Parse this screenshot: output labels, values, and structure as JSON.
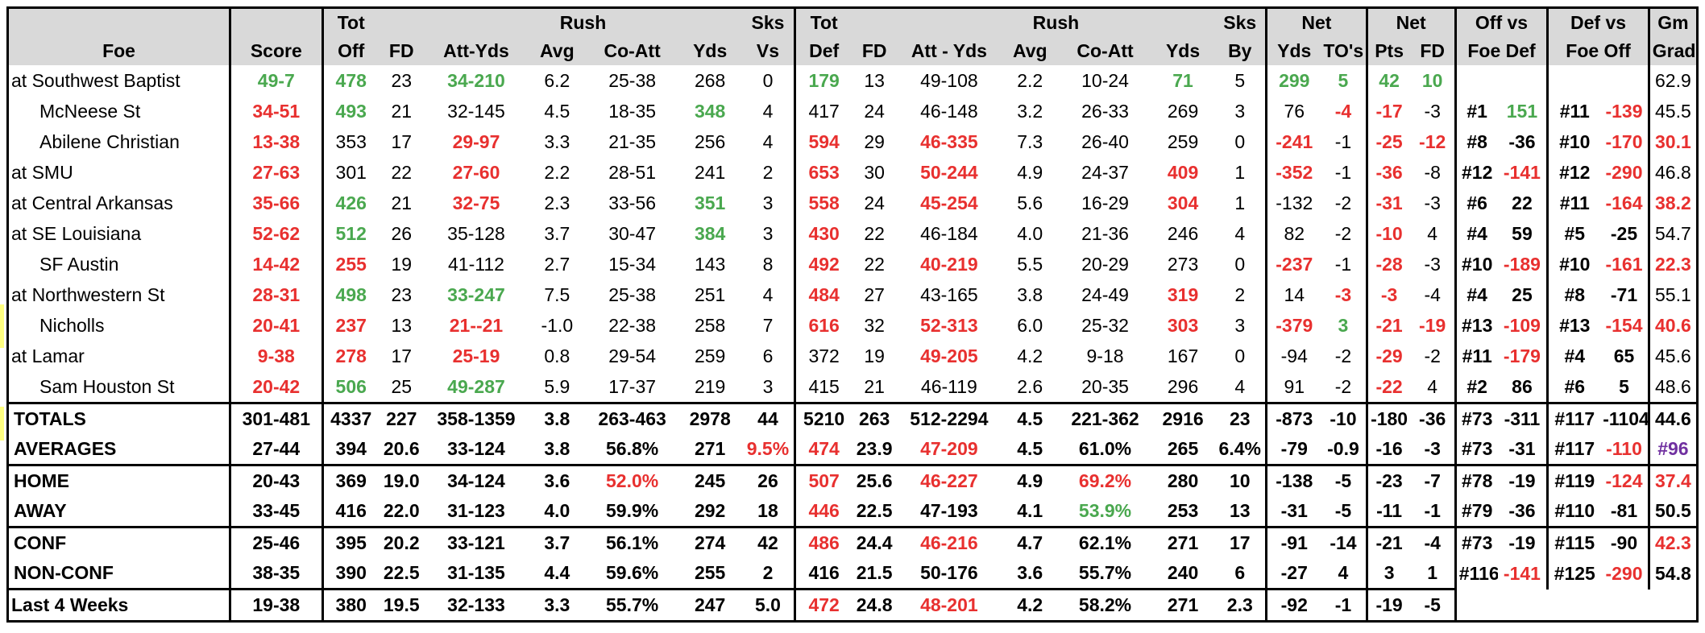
{
  "header": {
    "row1": [
      "",
      "",
      "Tot",
      "",
      "Rush",
      "",
      "",
      "",
      "Sks",
      "Tot",
      "",
      "Rush",
      "",
      "",
      "",
      "Sks",
      "Net",
      "",
      "Net",
      "",
      "Off vs",
      "",
      "Def vs",
      "",
      "Gm"
    ],
    "row2": [
      "Foe",
      "Score",
      "Off",
      "FD",
      "Att-Yds",
      "Avg",
      "Co-Att",
      "Yds",
      "Vs",
      "Def",
      "FD",
      "Att - Yds",
      "Avg",
      "Co-Att",
      "Yds",
      "By",
      "Yds",
      "TO's",
      "Pts",
      "FD",
      "Foe Def",
      "",
      "Foe Off",
      "",
      "Grade"
    ]
  },
  "games": [
    {
      "foe": "at Southwest Baptist",
      "score": "49-7",
      "off": "478",
      "fd": "23",
      "rush": "34-210",
      "avg": "6.2",
      "coatt": "25-38",
      "yds": "268",
      "sks": "0",
      "def": "179",
      "dfd": "13",
      "drush": "49-108",
      "davg": "2.2",
      "dcoatt": "10-24",
      "dyds": "71",
      "sksby": "5",
      "netyds": "299",
      "to": "5",
      "netpts": "42",
      "netfd": "10",
      "offrank": "",
      "offval": "",
      "defrank": "",
      "defval": "",
      "grade": "62.9"
    },
    {
      "foe": "McNeese St",
      "score": "34-51",
      "off": "493",
      "fd": "21",
      "rush": "32-145",
      "avg": "4.5",
      "coatt": "18-35",
      "yds": "348",
      "sks": "4",
      "def": "417",
      "dfd": "24",
      "drush": "46-148",
      "davg": "3.2",
      "dcoatt": "26-33",
      "dyds": "269",
      "sksby": "3",
      "netyds": "76",
      "to": "-4",
      "netpts": "-17",
      "netfd": "-3",
      "offrank": "#1",
      "offval": "151",
      "defrank": "#11",
      "defval": "-139",
      "grade": "45.5"
    },
    {
      "foe": "Abilene Christian",
      "score": "13-38",
      "off": "353",
      "fd": "17",
      "rush": "29-97",
      "avg": "3.3",
      "coatt": "21-35",
      "yds": "256",
      "sks": "4",
      "def": "594",
      "dfd": "29",
      "drush": "46-335",
      "davg": "7.3",
      "dcoatt": "26-40",
      "dyds": "259",
      "sksby": "0",
      "netyds": "-241",
      "to": "-1",
      "netpts": "-25",
      "netfd": "-12",
      "offrank": "#8",
      "offval": "-36",
      "defrank": "#10",
      "defval": "-170",
      "grade": "30.1"
    },
    {
      "foe": "at SMU",
      "score": "27-63",
      "off": "301",
      "fd": "22",
      "rush": "27-60",
      "avg": "2.2",
      "coatt": "28-51",
      "yds": "241",
      "sks": "2",
      "def": "653",
      "dfd": "30",
      "drush": "50-244",
      "davg": "4.9",
      "dcoatt": "24-37",
      "dyds": "409",
      "sksby": "1",
      "netyds": "-352",
      "to": "-1",
      "netpts": "-36",
      "netfd": "-8",
      "offrank": "#12",
      "offval": "-141",
      "defrank": "#12",
      "defval": "-290",
      "grade": "46.8"
    },
    {
      "foe": "at Central Arkansas",
      "score": "35-66",
      "off": "426",
      "fd": "21",
      "rush": "32-75",
      "avg": "2.3",
      "coatt": "33-56",
      "yds": "351",
      "sks": "3",
      "def": "558",
      "dfd": "24",
      "drush": "45-254",
      "davg": "5.6",
      "dcoatt": "16-29",
      "dyds": "304",
      "sksby": "1",
      "netyds": "-132",
      "to": "-2",
      "netpts": "-31",
      "netfd": "-3",
      "offrank": "#6",
      "offval": "22",
      "defrank": "#11",
      "defval": "-164",
      "grade": "38.2"
    },
    {
      "foe": "at SE Louisiana",
      "score": "52-62",
      "off": "512",
      "fd": "26",
      "rush": "35-128",
      "avg": "3.7",
      "coatt": "30-47",
      "yds": "384",
      "sks": "3",
      "def": "430",
      "dfd": "22",
      "drush": "46-184",
      "davg": "4.0",
      "dcoatt": "21-36",
      "dyds": "246",
      "sksby": "4",
      "netyds": "82",
      "to": "-2",
      "netpts": "-10",
      "netfd": "4",
      "offrank": "#4",
      "offval": "59",
      "defrank": "#5",
      "defval": "-25",
      "grade": "54.7"
    },
    {
      "foe": "SF Austin",
      "score": "14-42",
      "off": "255",
      "fd": "19",
      "rush": "41-112",
      "avg": "2.7",
      "coatt": "15-34",
      "yds": "143",
      "sks": "8",
      "def": "492",
      "dfd": "22",
      "drush": "40-219",
      "davg": "5.5",
      "dcoatt": "20-29",
      "dyds": "273",
      "sksby": "0",
      "netyds": "-237",
      "to": "-1",
      "netpts": "-28",
      "netfd": "-3",
      "offrank": "#10",
      "offval": "-189",
      "defrank": "#10",
      "defval": "-161",
      "grade": "22.3"
    },
    {
      "foe": "at Northwestern St",
      "score": "28-31",
      "off": "498",
      "fd": "23",
      "rush": "33-247",
      "avg": "7.5",
      "coatt": "25-38",
      "yds": "251",
      "sks": "4",
      "def": "484",
      "dfd": "27",
      "drush": "43-165",
      "davg": "3.8",
      "dcoatt": "24-49",
      "dyds": "319",
      "sksby": "2",
      "netyds": "14",
      "to": "-3",
      "netpts": "-3",
      "netfd": "-4",
      "offrank": "#4",
      "offval": "25",
      "defrank": "#8",
      "defval": "-71",
      "grade": "55.1"
    },
    {
      "foe": "Nicholls",
      "score": "20-41",
      "off": "237",
      "fd": "13",
      "rush": "21--21",
      "avg": "-1.0",
      "coatt": "22-38",
      "yds": "258",
      "sks": "7",
      "def": "616",
      "dfd": "32",
      "drush": "52-313",
      "davg": "6.0",
      "dcoatt": "25-32",
      "dyds": "303",
      "sksby": "3",
      "netyds": "-379",
      "to": "3",
      "netpts": "-21",
      "netfd": "-19",
      "offrank": "#13",
      "offval": "-109",
      "defrank": "#13",
      "defval": "-154",
      "grade": "40.6"
    },
    {
      "foe": "at Lamar",
      "score": "9-38",
      "off": "278",
      "fd": "17",
      "rush": "25-19",
      "avg": "0.8",
      "coatt": "29-54",
      "yds": "259",
      "sks": "6",
      "def": "372",
      "dfd": "19",
      "drush": "49-205",
      "davg": "4.2",
      "dcoatt": "9-18",
      "dyds": "167",
      "sksby": "0",
      "netyds": "-94",
      "to": "-2",
      "netpts": "-29",
      "netfd": "-2",
      "offrank": "#11",
      "offval": "-179",
      "defrank": "#4",
      "defval": "65",
      "grade": "45.6"
    },
    {
      "foe": "Sam Houston St",
      "score": "20-42",
      "off": "506",
      "fd": "25",
      "rush": "49-287",
      "avg": "5.9",
      "coatt": "17-37",
      "yds": "219",
      "sks": "3",
      "def": "415",
      "dfd": "21",
      "drush": "46-119",
      "davg": "2.6",
      "dcoatt": "20-35",
      "dyds": "296",
      "sksby": "4",
      "netyds": "91",
      "to": "-2",
      "netpts": "-22",
      "netfd": "4",
      "offrank": "#2",
      "offval": "86",
      "defrank": "#6",
      "defval": "5",
      "grade": "48.6"
    }
  ],
  "summary": [
    {
      "foe": "TOTALS",
      "score": "301-481",
      "off": "4337",
      "fd": "227",
      "rush": "358-1359",
      "avg": "3.8",
      "coatt": "263-463",
      "yds": "2978",
      "sks": "44",
      "def": "5210",
      "dfd": "263",
      "drush": "512-2294",
      "davg": "4.5",
      "dcoatt": "221-362",
      "dyds": "2916",
      "sksby": "23",
      "netyds": "-873",
      "to": "-10",
      "netpts": "-180",
      "netfd": "-36",
      "offrank": "#73",
      "offval": "-311",
      "defrank": "#117",
      "defval": "-1104",
      "grade": "44.6"
    },
    {
      "foe": "AVERAGES",
      "score": "27-44",
      "off": "394",
      "fd": "20.6",
      "rush": "33-124",
      "avg": "3.8",
      "coatt": "56.8%",
      "yds": "271",
      "sks": "9.5%",
      "def": "474",
      "dfd": "23.9",
      "drush": "47-209",
      "davg": "4.5",
      "dcoatt": "61.0%",
      "dyds": "265",
      "sksby": "6.4%",
      "netyds": "-79",
      "to": "-0.9",
      "netpts": "-16",
      "netfd": "-3",
      "offrank": "#73",
      "offval": "-31",
      "defrank": "#117",
      "defval": "-110",
      "grade": "#96"
    },
    {
      "foe": "HOME",
      "score": "20-43",
      "off": "369",
      "fd": "19.0",
      "rush": "34-124",
      "avg": "3.6",
      "coatt": "52.0%",
      "yds": "245",
      "sks": "26",
      "def": "507",
      "dfd": "25.6",
      "drush": "46-227",
      "davg": "4.9",
      "dcoatt": "69.2%",
      "dyds": "280",
      "sksby": "10",
      "netyds": "-138",
      "to": "-5",
      "netpts": "-23",
      "netfd": "-7",
      "offrank": "#78",
      "offval": "-19",
      "defrank": "#119",
      "defval": "-124",
      "grade": "37.4"
    },
    {
      "foe": "AWAY",
      "score": "33-45",
      "off": "416",
      "fd": "22.0",
      "rush": "31-123",
      "avg": "4.0",
      "coatt": "59.9%",
      "yds": "292",
      "sks": "18",
      "def": "446",
      "dfd": "22.5",
      "drush": "47-193",
      "davg": "4.1",
      "dcoatt": "53.9%",
      "dyds": "253",
      "sksby": "13",
      "netyds": "-31",
      "to": "-5",
      "netpts": "-11",
      "netfd": "-1",
      "offrank": "#79",
      "offval": "-36",
      "defrank": "#110",
      "defval": "-81",
      "grade": "50.5"
    },
    {
      "foe": "CONF",
      "score": "25-46",
      "off": "395",
      "fd": "20.2",
      "rush": "33-121",
      "avg": "3.7",
      "coatt": "56.1%",
      "yds": "274",
      "sks": "42",
      "def": "486",
      "dfd": "24.4",
      "drush": "46-216",
      "davg": "4.7",
      "dcoatt": "62.1%",
      "dyds": "271",
      "sksby": "17",
      "netyds": "-91",
      "to": "-14",
      "netpts": "-21",
      "netfd": "-4",
      "offrank": "#73",
      "offval": "-19",
      "defrank": "#115",
      "defval": "-90",
      "grade": "42.3"
    },
    {
      "foe": "NON-CONF",
      "score": "38-35",
      "off": "390",
      "fd": "22.5",
      "rush": "31-135",
      "avg": "4.4",
      "coatt": "59.6%",
      "yds": "255",
      "sks": "2",
      "def": "416",
      "dfd": "21.5",
      "drush": "50-176",
      "davg": "3.6",
      "dcoatt": "55.7%",
      "dyds": "240",
      "sksby": "6",
      "netyds": "-27",
      "to": "4",
      "netpts": "3",
      "netfd": "1",
      "offrank": "#116",
      "offval": "-141",
      "defrank": "#125",
      "defval": "-290",
      "grade": "54.8"
    }
  ],
  "last4": {
    "foe": "Last 4 Weeks",
    "score": "19-38",
    "off": "380",
    "fd": "19.5",
    "rush": "32-133",
    "avg": "3.3",
    "coatt": "55.7%",
    "yds": "247",
    "sks": "5.0",
    "def": "472",
    "dfd": "24.8",
    "drush": "48-201",
    "davg": "4.2",
    "dcoatt": "58.2%",
    "dyds": "271",
    "sksby": "2.3",
    "netyds": "-92",
    "to": "-1",
    "netpts": "-19",
    "netfd": "-5"
  },
  "colors": {
    "games": [
      {
        "score": "g",
        "off": "g",
        "rush": "g",
        "def": "g",
        "dyds": "g",
        "netyds": "g",
        "to": "g",
        "netpts": "g",
        "netfd": "g"
      },
      {
        "score": "r",
        "off": "g",
        "yds": "g",
        "to": "r",
        "netpts": "r",
        "offval": "g",
        "defval": "r"
      },
      {
        "score": "r",
        "rush": "r",
        "def": "r",
        "drush": "r",
        "netyds": "r",
        "netpts": "r",
        "netfd": "r",
        "defval": "r",
        "grade": "r"
      },
      {
        "score": "r",
        "rush": "r",
        "def": "r",
        "drush": "r",
        "dyds": "r",
        "netyds": "r",
        "netpts": "r",
        "offval": "r",
        "defval": "r"
      },
      {
        "score": "r",
        "off": "g",
        "rush": "r",
        "yds": "g",
        "def": "r",
        "drush": "r",
        "dyds": "r",
        "netpts": "r",
        "defval": "r",
        "grade": "r"
      },
      {
        "score": "r",
        "off": "g",
        "yds": "g",
        "def": "r",
        "netpts": "r"
      },
      {
        "score": "r",
        "off": "r",
        "def": "r",
        "drush": "r",
        "netyds": "r",
        "netpts": "r",
        "offval": "r",
        "defval": "r",
        "grade": "r"
      },
      {
        "score": "r",
        "off": "g",
        "rush": "g",
        "def": "r",
        "dyds": "r",
        "to": "r",
        "netpts": "r"
      },
      {
        "score": "r",
        "off": "r",
        "rush": "r",
        "def": "r",
        "drush": "r",
        "dyds": "r",
        "netyds": "r",
        "to": "g",
        "netpts": "r",
        "netfd": "r",
        "offval": "r",
        "defval": "r",
        "grade": "r"
      },
      {
        "score": "r",
        "off": "r",
        "rush": "r",
        "drush": "r",
        "netpts": "r",
        "offval": "r"
      },
      {
        "score": "r",
        "off": "g",
        "rush": "g",
        "netpts": "r"
      }
    ],
    "summary": [
      {},
      {
        "sks": "r",
        "def": "r",
        "drush": "r",
        "defval": "r",
        "grade": "p"
      },
      {
        "coatt": "r",
        "def": "r",
        "drush": "r",
        "dcoatt": "r",
        "defval": "r",
        "grade": "r"
      },
      {
        "def": "r",
        "dcoatt": "g"
      },
      {
        "def": "r",
        "drush": "r",
        "grade": "r"
      },
      {
        "offval": "r",
        "defval": "r"
      }
    ],
    "last4": {
      "def": "r",
      "drush": "r"
    }
  }
}
